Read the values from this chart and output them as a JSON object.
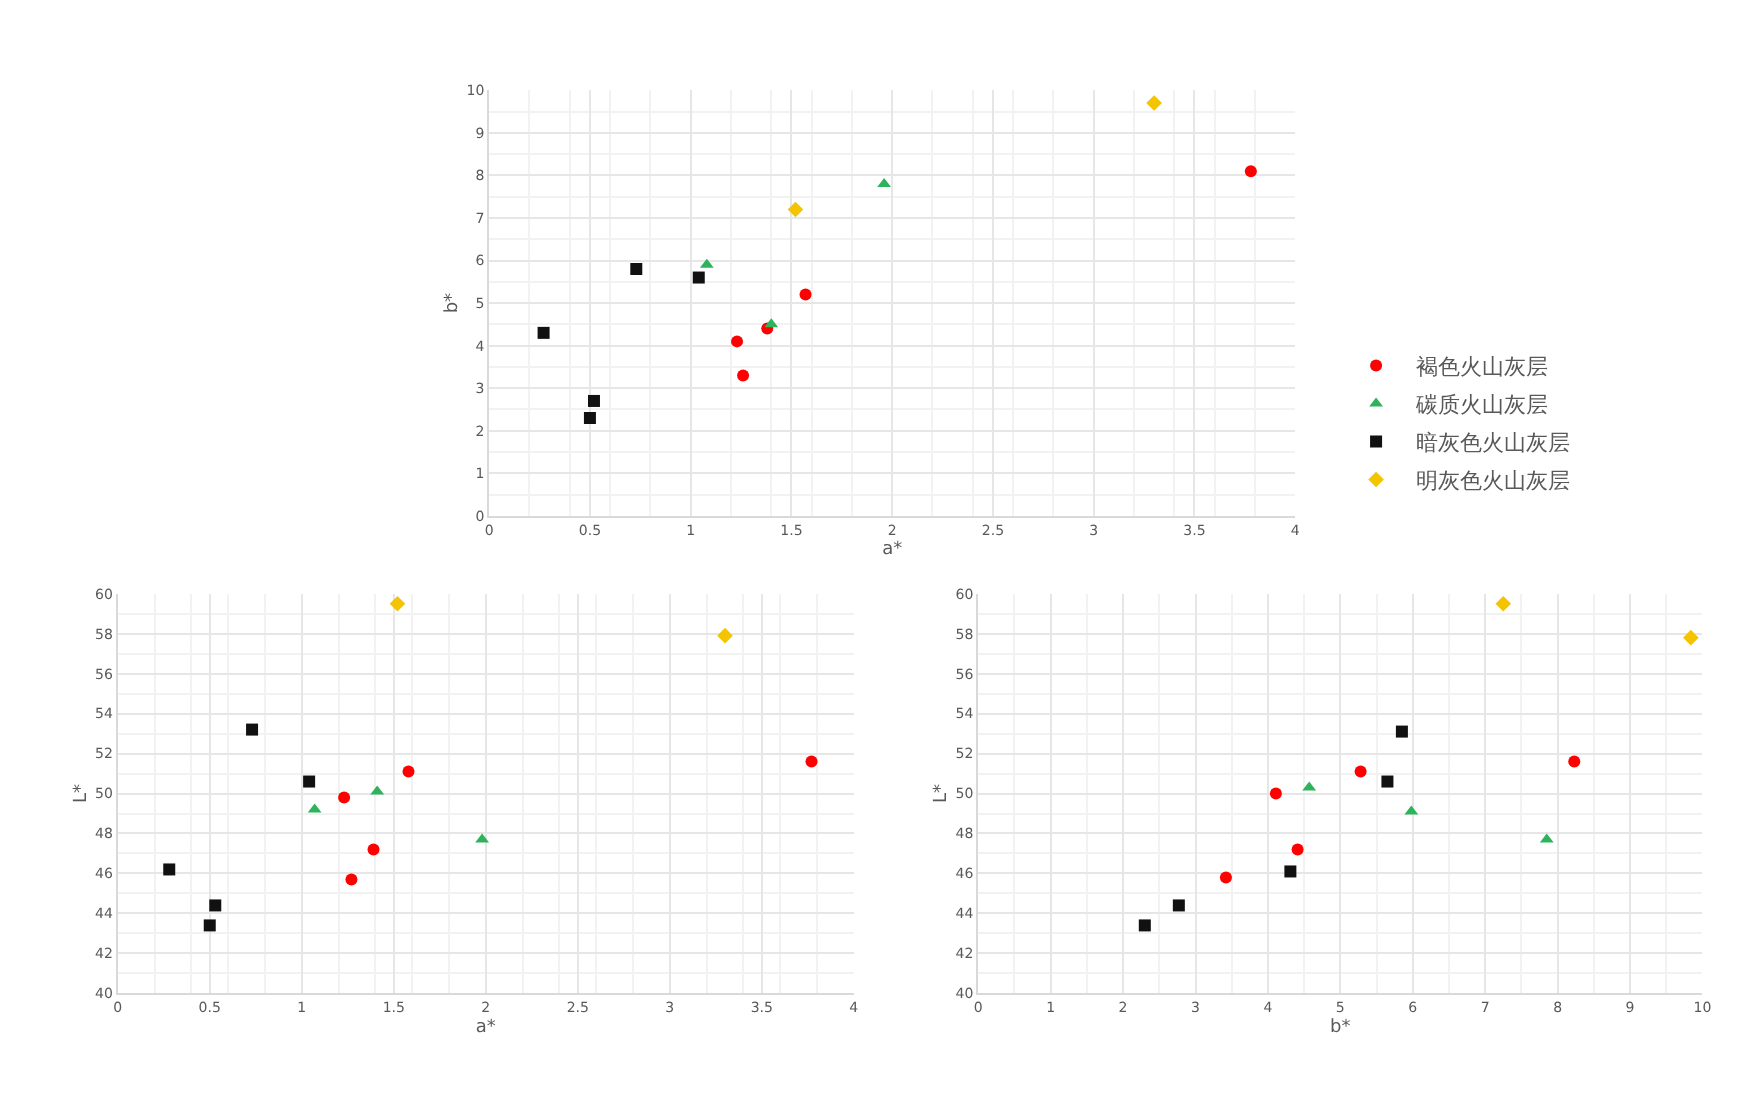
{
  "chart_data": [
    {
      "type": "scatter",
      "xlabel": "a*",
      "ylabel": "b*",
      "xlim": [
        0,
        4
      ],
      "xticks": [
        0,
        0.5,
        1,
        1.5,
        2,
        2.5,
        3,
        3.5,
        4
      ],
      "ylim": [
        0,
        10
      ],
      "yticks": [
        0,
        1,
        2,
        3,
        4,
        5,
        6,
        7,
        8,
        9,
        10
      ],
      "grid": true,
      "legend": "right",
      "series": [
        {
          "name": "褐色火山灰层",
          "color": "#ff0000",
          "marker": "circle",
          "x": [
            1.23,
            1.26,
            1.38,
            1.57,
            3.78
          ],
          "values": [
            4.1,
            3.3,
            4.4,
            5.2,
            8.1
          ]
        },
        {
          "name": "碳质火山灰层",
          "color": "#2db35c",
          "marker": "triangle",
          "x": [
            1.08,
            1.4,
            1.96
          ],
          "values": [
            5.9,
            4.5,
            7.8
          ]
        },
        {
          "name": "暗灰色火山灰层",
          "color": "#111111",
          "marker": "square",
          "x": [
            0.27,
            0.52,
            0.5,
            0.73,
            1.04
          ],
          "values": [
            4.3,
            2.7,
            2.3,
            5.8,
            5.6
          ]
        },
        {
          "name": "明灰色火山灰层",
          "color": "#f5c400",
          "marker": "diamond",
          "x": [
            1.52,
            3.3
          ],
          "values": [
            7.2,
            9.7
          ]
        }
      ]
    },
    {
      "type": "scatter",
      "xlabel": "a*",
      "ylabel": "L*",
      "xlim": [
        0,
        4
      ],
      "xticks": [
        0,
        0.5,
        1,
        1.5,
        2,
        2.5,
        3,
        3.5,
        4
      ],
      "ylim": [
        40,
        60
      ],
      "yticks": [
        40,
        42,
        44,
        46,
        48,
        50,
        52,
        54,
        56,
        58,
        60
      ],
      "grid": true,
      "series": [
        {
          "color": "#ff0000",
          "marker": "circle",
          "x": [
            1.23,
            1.27,
            1.39,
            1.58,
            3.77
          ],
          "values": [
            49.8,
            45.7,
            47.2,
            51.1,
            51.6
          ]
        },
        {
          "color": "#2db35c",
          "marker": "triangle",
          "x": [
            1.07,
            1.41,
            1.98
          ],
          "values": [
            49.2,
            50.1,
            47.7
          ]
        },
        {
          "color": "#111111",
          "marker": "square",
          "x": [
            0.28,
            0.53,
            0.5,
            0.73,
            1.04
          ],
          "values": [
            46.2,
            44.4,
            43.4,
            53.2,
            50.6
          ]
        },
        {
          "color": "#f5c400",
          "marker": "diamond",
          "x": [
            1.52,
            3.3
          ],
          "values": [
            59.5,
            57.9
          ]
        }
      ]
    },
    {
      "type": "scatter",
      "xlabel": "b*",
      "ylabel": "L*",
      "xlim": [
        0,
        10
      ],
      "xticks": [
        0,
        1,
        2,
        3,
        4,
        5,
        6,
        7,
        8,
        9,
        10
      ],
      "ylim": [
        40,
        60
      ],
      "yticks": [
        40,
        42,
        44,
        46,
        48,
        50,
        52,
        54,
        56,
        58,
        60
      ],
      "grid": true,
      "series": [
        {
          "color": "#ff0000",
          "marker": "circle",
          "x": [
            4.11,
            3.42,
            4.41,
            5.28,
            8.23
          ],
          "values": [
            50.0,
            45.8,
            47.2,
            51.1,
            51.6
          ]
        },
        {
          "color": "#2db35c",
          "marker": "triangle",
          "x": [
            4.57,
            5.98,
            7.85
          ],
          "values": [
            50.3,
            49.1,
            47.7
          ]
        },
        {
          "color": "#111111",
          "marker": "square",
          "x": [
            2.3,
            2.77,
            4.31,
            5.65,
            5.85
          ],
          "values": [
            43.4,
            44.4,
            46.1,
            50.6,
            53.1
          ]
        },
        {
          "color": "#f5c400",
          "marker": "diamond",
          "x": [
            7.25,
            9.84
          ],
          "values": [
            59.5,
            57.8
          ]
        }
      ]
    }
  ]
}
